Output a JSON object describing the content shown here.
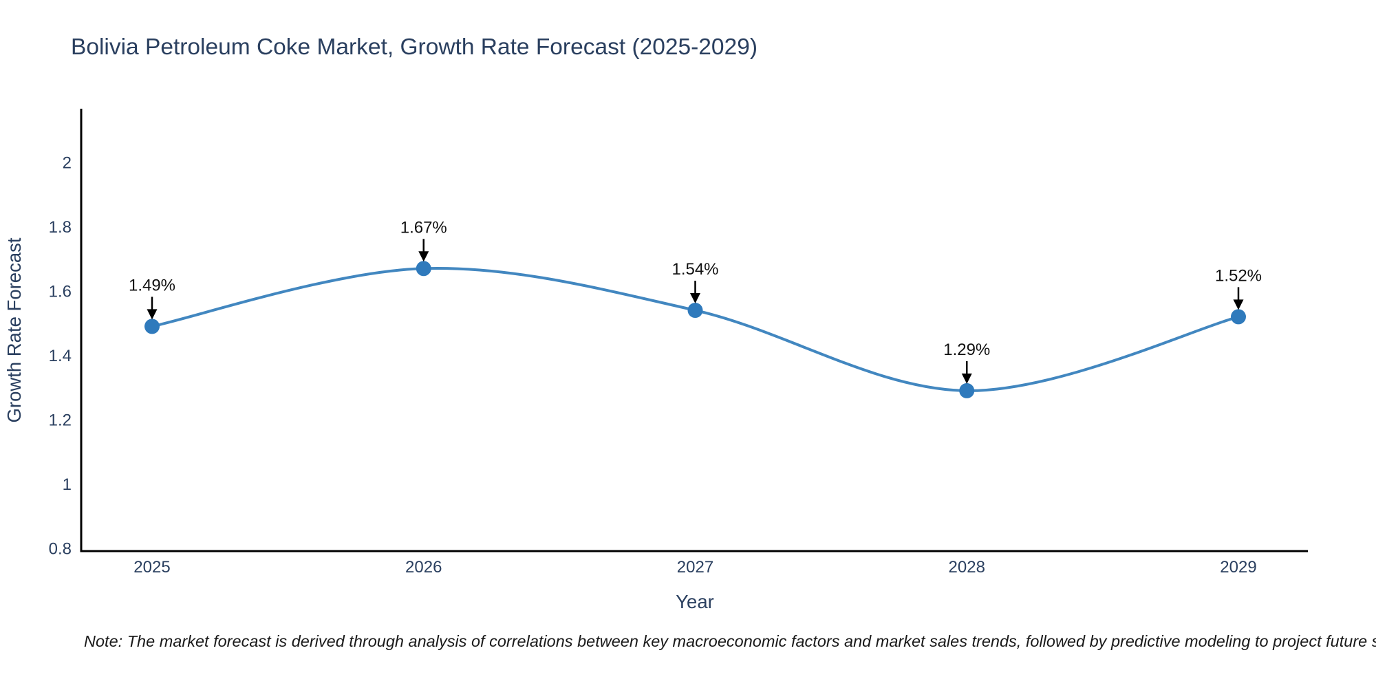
{
  "title": "Bolivia Petroleum Coke Market, Growth Rate Forecast (2025-2029)",
  "note": "Note: The market forecast is derived through analysis of correlations between key macroeconomic factors and market sales trends, followed by predictive modeling to project future sales",
  "colors": {
    "background": "#ffffff",
    "title_text": "#2a3f5f",
    "tick_text": "#2a3f5f",
    "annotation_text": "#111111",
    "line": "#4287c0",
    "marker": "#2f7abc",
    "axis_line": "#000000",
    "arrow": "#000000"
  },
  "chart_data": {
    "type": "line",
    "title": "Bolivia Petroleum Coke Market, Growth Rate Forecast (2025-2029)",
    "xlabel": "Year",
    "ylabel": "Growth Rate Forecast",
    "categories": [
      "2025",
      "2026",
      "2027",
      "2028",
      "2029"
    ],
    "series": [
      {
        "name": "Growth Rate Forecast",
        "values": [
          1.49,
          1.67,
          1.54,
          1.29,
          1.52
        ],
        "point_labels": [
          "1.49%",
          "1.67%",
          "1.54%",
          "1.29%",
          "1.52%"
        ]
      }
    ],
    "line_shape": "spline",
    "markers": true,
    "yticks": [
      2,
      1.8,
      1.6,
      1.4,
      1.2,
      1,
      0.8
    ],
    "ylim": [
      0.79,
      2.17
    ],
    "grid": false,
    "legend_position": "none",
    "annotations_note": "Each point labeled with percent value and a downward arrow"
  }
}
